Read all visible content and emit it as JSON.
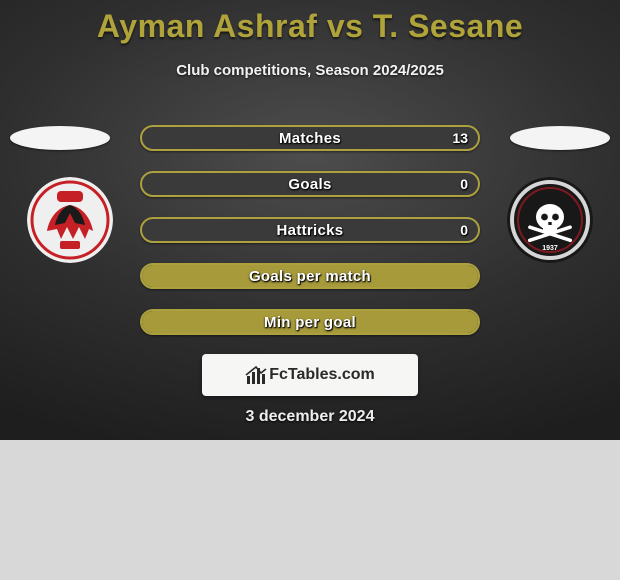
{
  "title": "Ayman Ashraf vs T. Sesane",
  "subtitle": "Club competitions, Season 2024/2025",
  "date": "3 december 2024",
  "logo_text": "FcTables.com",
  "colors": {
    "accent": "#aca03f",
    "bar_fill": "#a79a3a",
    "bg_dark": "#2f2f30"
  },
  "bars": [
    {
      "label": "Matches",
      "left": "",
      "right": "13",
      "fill_pct": 0
    },
    {
      "label": "Goals",
      "left": "",
      "right": "0",
      "fill_pct": 0
    },
    {
      "label": "Hattricks",
      "left": "",
      "right": "0",
      "fill_pct": 0
    },
    {
      "label": "Goals per match",
      "left": "",
      "right": "",
      "fill_pct": 100
    },
    {
      "label": "Min per goal",
      "left": "",
      "right": "",
      "fill_pct": 100
    }
  ],
  "crest_left": {
    "name": "al-ahly",
    "bg": "#f0efef",
    "primary": "#c52025",
    "secondary": "#1a1a1a"
  },
  "crest_right": {
    "name": "orlando-pirates",
    "bg": "#181818",
    "ring": "#d6d6d6",
    "primary": "#ffffff"
  }
}
